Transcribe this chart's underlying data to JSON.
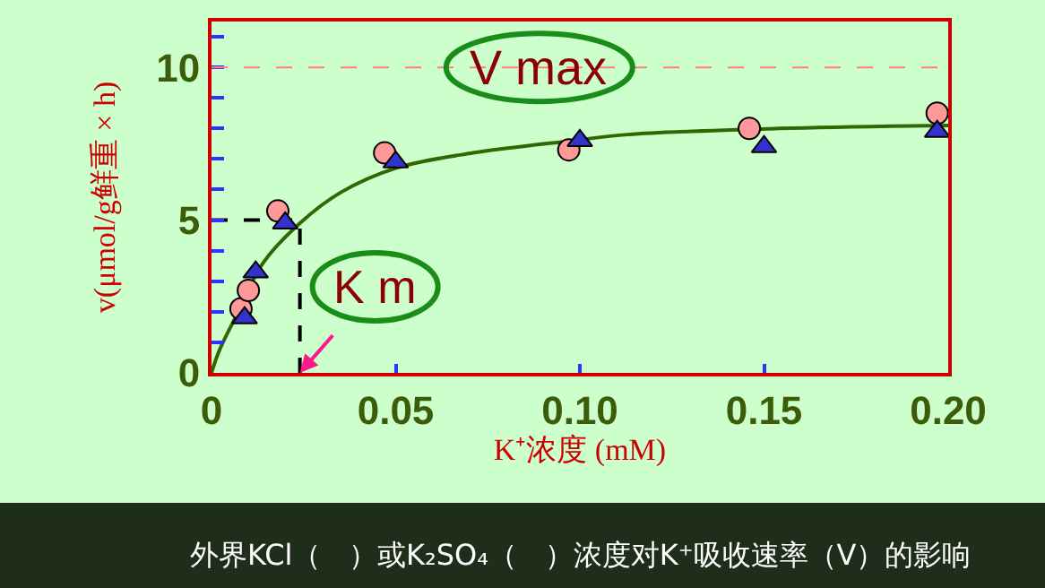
{
  "chart_data": {
    "type": "scatter",
    "xlabel": "K⁺浓度 (mM)",
    "ylabel": "v(μmol/g鲜重 × h)",
    "xlim": [
      0,
      0.2
    ],
    "ylim": [
      0,
      11.5
    ],
    "xticks": [
      0,
      {
        "value": 0.05,
        "label": "0.05"
      },
      {
        "value": 0.1,
        "label": "0.10"
      },
      {
        "value": 0.15,
        "label": "0.15"
      },
      {
        "value": 0.2,
        "label": "0.20"
      }
    ],
    "yticks": [
      0,
      5,
      10
    ],
    "grid": false,
    "series": [
      {
        "type": "line",
        "color": "#336600",
        "marker": "none",
        "line_style": "solid",
        "x": [
          0,
          0.002,
          0.006,
          0.014,
          0.024,
          0.035,
          0.05,
          0.071,
          0.098,
          0.113,
          0.154,
          0.2
        ],
        "values": [
          0,
          0.7,
          1.7,
          3.6,
          4.9,
          5.9,
          6.7,
          7.2,
          7.6,
          7.8,
          8.0,
          8.1
        ]
      },
      {
        "type": "line",
        "color": "#000000",
        "marker": "none",
        "line_style": "dashed",
        "x": [
          0,
          0.024,
          0.024
        ],
        "values": [
          5,
          5,
          0
        ]
      },
      {
        "color": "#ff9999",
        "marker": "circle",
        "x": [
          0.008,
          0.01,
          0.018,
          0.047,
          0.097,
          0.146,
          0.197
        ],
        "values": [
          2.1,
          2.7,
          5.3,
          7.2,
          7.3,
          8.0,
          8.5
        ]
      },
      {
        "color": "#3333cc",
        "marker": "triangle",
        "x": [
          0.009,
          0.012,
          0.02,
          0.05,
          0.1,
          0.15,
          0.197
        ],
        "values": [
          1.8,
          3.3,
          4.9,
          6.9,
          7.6,
          7.4,
          7.9
        ]
      }
    ],
    "ref_lines": [
      {
        "axis": "y",
        "value": 10,
        "color": "#ff8080",
        "line_style": "dashed"
      }
    ],
    "annotations": [
      {
        "text": "V max",
        "x": 0.089,
        "y": 10
      },
      {
        "text": "K m",
        "x": 0.024,
        "y": 0
      },
      "外界KCl（   ）或K₂SO₄（   ）浓度对K⁺吸收速率（V）的影响"
    ]
  }
}
